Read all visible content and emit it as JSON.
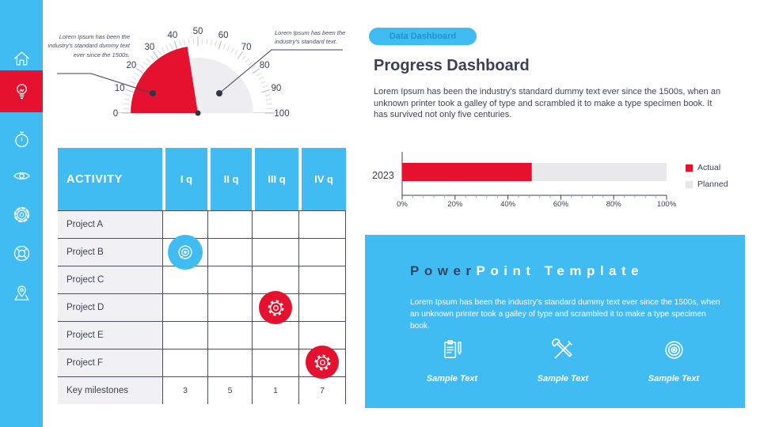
{
  "colors": {
    "accent_blue": "#41BCF3",
    "accent_red": "#E6112E",
    "dark_navy": "#3A4254",
    "activity_cell_gray": "#F1F1F4",
    "planned_gray": "#E9E9EC",
    "badge_text_blue": "#1E93D2"
  },
  "sidebar": {
    "items": [
      {
        "icon": "home-icon",
        "active": false
      },
      {
        "icon": "lightbulb-icon",
        "active": true
      },
      {
        "icon": "stopwatch-icon",
        "active": false
      },
      {
        "icon": "eye-icon",
        "active": false
      },
      {
        "icon": "gear-icon",
        "active": false
      },
      {
        "icon": "lifebuoy-icon",
        "active": false
      },
      {
        "icon": "map-pin-icon",
        "active": false
      }
    ]
  },
  "gauge": {
    "annotation_left": "Lorem Ipsum has been the industry's standard dummy text ever since the 1500s.",
    "annotation_right": "Lorem Ipsum has been the industry's standard text."
  },
  "table": {
    "headers": [
      "ACTIVITY",
      "I q",
      "II q",
      "III q",
      "IV q"
    ],
    "rows": [
      {
        "label": "Project A"
      },
      {
        "label": "Project B"
      },
      {
        "label": "Project C"
      },
      {
        "label": "Project D"
      },
      {
        "label": "Project E"
      },
      {
        "label": "Project F"
      }
    ],
    "milestones": {
      "label": "Key milestones",
      "values": [
        "3",
        "5",
        "1",
        "7"
      ]
    },
    "markers": [
      {
        "row": "Project B",
        "column": "I q",
        "icon": "target-icon",
        "color": "#41BCF3"
      },
      {
        "row": "Project D",
        "column": "III q",
        "icon": "gear-icon",
        "color": "#E6112E"
      },
      {
        "row": "Project F",
        "column": "IV q",
        "icon": "gear-icon",
        "color": "#E6112E"
      }
    ]
  },
  "header": {
    "badge": "Data Dashboard",
    "title": "Progress Dashboard",
    "body": "Lorem Ipsum has been the industry's standard dummy text ever since the 1500s, when an unknown printer took a galley of type and scrambled it to make a type specimen book. It has survived not only five centuries."
  },
  "chart_data": [
    {
      "type": "gauge",
      "min": 0,
      "max": 100,
      "value": 45,
      "tick_labels": [
        "0",
        "10",
        "20",
        "30",
        "40",
        "50",
        "60",
        "70",
        "80",
        "90",
        "100"
      ],
      "filled_color": "#E6112E",
      "track_color": "#EEEEF1"
    },
    {
      "type": "bar",
      "orientation": "horizontal",
      "stacked": true,
      "categories": [
        "2023"
      ],
      "series": [
        {
          "name": "Actual",
          "values": [
            49
          ],
          "color": "#E6112E"
        },
        {
          "name": "Planned",
          "values": [
            51
          ],
          "color": "#E9E9EC"
        }
      ],
      "xlim": [
        0,
        100
      ],
      "x_tick_labels": [
        "0%",
        "20%",
        "40%",
        "60%",
        "80%",
        "100%"
      ],
      "legend_position": "right",
      "grid": false
    }
  ],
  "panel": {
    "title_primary": "Power",
    "title_secondary": "Point Template",
    "body": "Lorem Ipsum has been the industry's standard dummy text ever since the 1500s, when an unknown printer took a galley of type and scrambled it to make a type specimen book.",
    "items": [
      {
        "icon": "clipboard-pen-icon",
        "label": "Sample Text"
      },
      {
        "icon": "tools-icon",
        "label": "Sample Text"
      },
      {
        "icon": "target-icon",
        "label": "Sample Text"
      }
    ]
  }
}
